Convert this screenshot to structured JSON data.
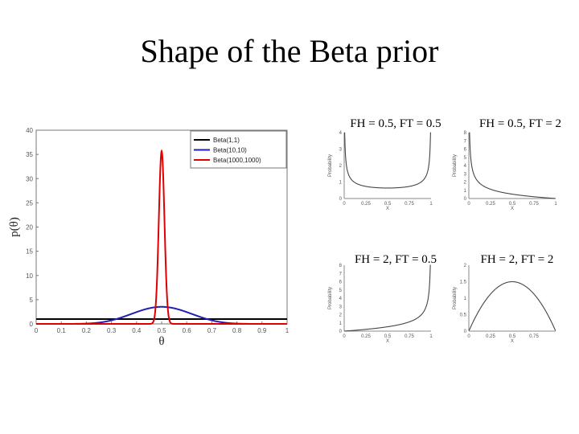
{
  "title": "Shape of the Beta prior",
  "chart_data": [
    {
      "type": "line",
      "xlabel": "θ",
      "ylabel": "p(θ)",
      "xlim": [
        0,
        1
      ],
      "ylim": [
        0,
        40
      ],
      "x_ticks": [
        "0",
        "0.1",
        "0.2",
        "0.3",
        "0.4",
        "0.5",
        "0.6",
        "0.7",
        "0.8",
        "0.9",
        "1"
      ],
      "y_ticks": [
        "0",
        "5",
        "10",
        "15",
        "20",
        "25",
        "30",
        "35",
        "40"
      ],
      "legend_position": "top-right",
      "series": [
        {
          "name": "Beta(1,1)",
          "color": "#000000",
          "alpha": 1,
          "beta": 1
        },
        {
          "name": "Beta(10,10)",
          "color": "#1f1fb4",
          "alpha": 10,
          "beta": 10
        },
        {
          "name": "Beta(1000,1000)",
          "color": "#e00000",
          "alpha": 1000,
          "beta": 1000
        }
      ],
      "peak_values": {
        "Beta(1,1)": 1,
        "Beta(10,10)": 3.52,
        "Beta(1000,1000)": 35.7
      }
    },
    {
      "type": "line",
      "title": "FH = 0.5, FT = 0.5",
      "xlabel": "X",
      "ylabel": "Probability",
      "alpha": 0.5,
      "beta": 0.5,
      "xlim": [
        0,
        1
      ],
      "ylim": [
        0,
        4
      ],
      "x_ticks": [
        "0",
        "0.25",
        "0.5",
        "0.75",
        "1"
      ],
      "y_ticks": [
        "0",
        "1",
        "2",
        "3",
        "4"
      ]
    },
    {
      "type": "line",
      "title": "FH = 0.5, FT = 2",
      "xlabel": "X",
      "ylabel": "Probability",
      "alpha": 0.5,
      "beta": 2,
      "xlim": [
        0,
        1
      ],
      "ylim": [
        0,
        8
      ],
      "x_ticks": [
        "0",
        "0.25",
        "0.5",
        "0.75",
        "1"
      ],
      "y_ticks": [
        "0",
        "1",
        "2",
        "3",
        "4",
        "5",
        "6",
        "7",
        "8"
      ]
    },
    {
      "type": "line",
      "title": "FH = 2, FT = 0.5",
      "xlabel": "X",
      "ylabel": "Probability",
      "alpha": 2,
      "beta": 0.5,
      "xlim": [
        0,
        1
      ],
      "ylim": [
        0,
        8
      ],
      "x_ticks": [
        "0",
        "0.25",
        "0.5",
        "0.75",
        "1"
      ],
      "y_ticks": [
        "0",
        "1",
        "2",
        "3",
        "4",
        "5",
        "6",
        "7",
        "8"
      ]
    },
    {
      "type": "line",
      "title": "FH = 2, FT = 2",
      "xlabel": "X",
      "ylabel": "Probability",
      "alpha": 2,
      "beta": 2,
      "xlim": [
        0,
        1
      ],
      "ylim": [
        0,
        2
      ],
      "x_ticks": [
        "0",
        "0.25",
        "0.5",
        "0.75"
      ],
      "y_ticks": [
        "0",
        "0.5",
        "1",
        "1.5",
        "2"
      ]
    }
  ]
}
